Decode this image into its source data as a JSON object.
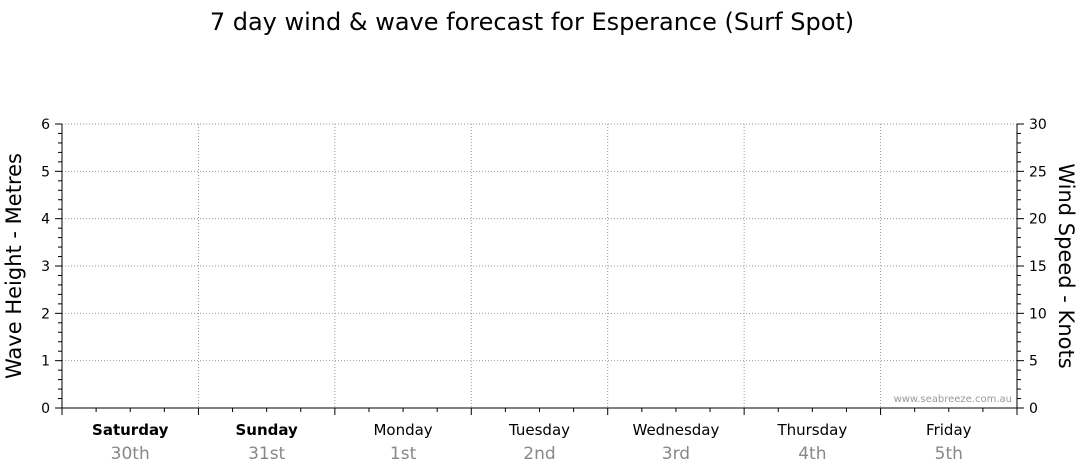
{
  "chart_data": {
    "type": "line",
    "title": "7 day wind & wave forecast for Esperance (Surf Spot)",
    "ylabel_left": "Wave Height - Metres",
    "ylabel_right": "Wind Speed - Knots",
    "y_left": {
      "min": 0,
      "max": 6,
      "ticks": [
        "0",
        "1",
        "2",
        "3",
        "4",
        "5",
        "6"
      ]
    },
    "y_right": {
      "min": 0,
      "max": 30,
      "ticks": [
        "0",
        "5",
        "10",
        "15",
        "20",
        "25",
        "30"
      ]
    },
    "grid": true,
    "days": [
      {
        "name": "Saturday",
        "date": "30th",
        "bold": true
      },
      {
        "name": "Sunday",
        "date": "31st",
        "bold": true
      },
      {
        "name": "Monday",
        "date": "1st",
        "bold": false
      },
      {
        "name": "Tuesday",
        "date": "2nd",
        "bold": false
      },
      {
        "name": "Wednesday",
        "date": "3rd",
        "bold": false
      },
      {
        "name": "Thursday",
        "date": "4th",
        "bold": false
      },
      {
        "name": "Friday",
        "date": "5th",
        "bold": false
      }
    ],
    "series": []
  },
  "credit": "www.seabreeze.com.au"
}
